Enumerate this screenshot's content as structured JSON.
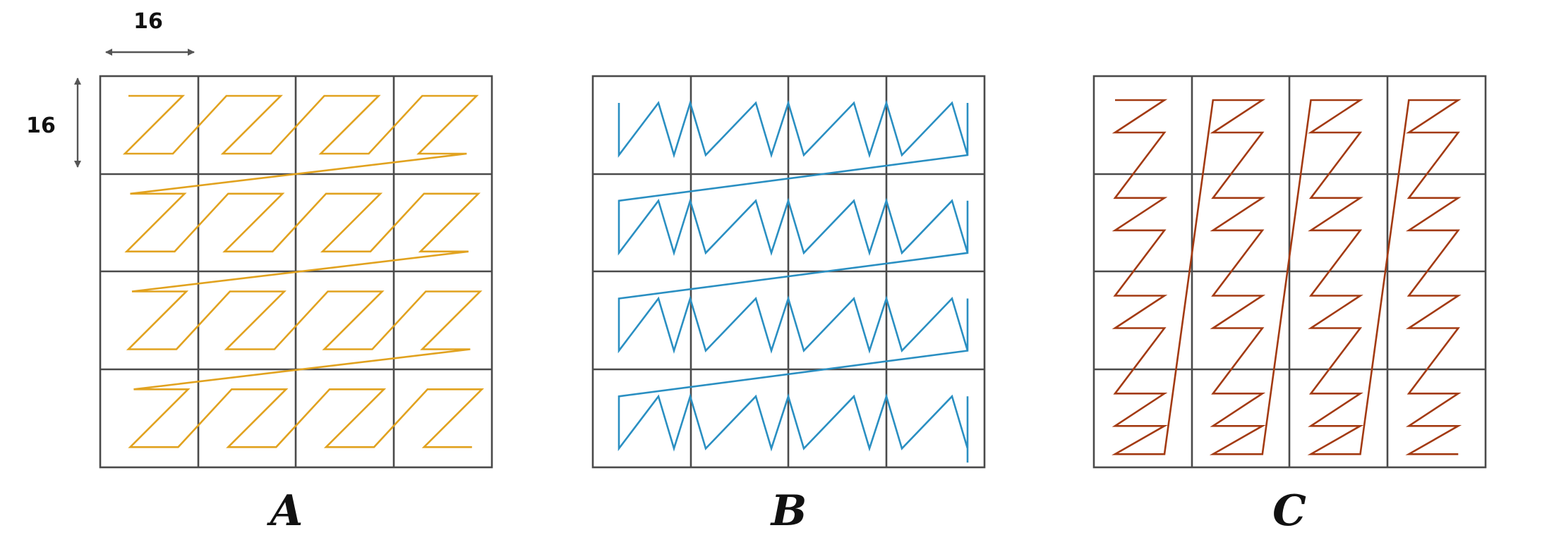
{
  "dimension": {
    "width_label": "16",
    "height_label": "16"
  },
  "panels": [
    {
      "id": "a",
      "label": "A",
      "color": "#e1a21f"
    },
    {
      "id": "b",
      "label": "B",
      "color": "#2a8fc2"
    },
    {
      "id": "c",
      "label": "C",
      "color": "#a33a12"
    }
  ]
}
